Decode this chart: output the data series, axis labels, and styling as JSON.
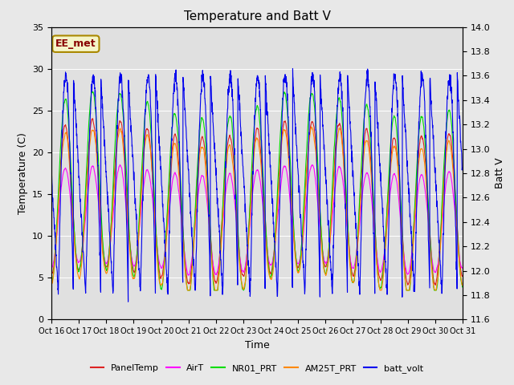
{
  "title": "Temperature and Batt V",
  "xlabel": "Time",
  "ylabel_left": "Temperature (C)",
  "ylabel_right": "Batt V",
  "annotation": "EE_met",
  "ylim_left": [
    0,
    35
  ],
  "ylim_right": [
    11.6,
    14.0
  ],
  "fig_facecolor": "#e8e8e8",
  "ax_facecolor": "#e0e0e0",
  "x_tick_labels": [
    "Oct 16",
    "Oct 17",
    "Oct 18",
    "Oct 19",
    "Oct 20",
    "Oct 21",
    "Oct 22",
    "Oct 23",
    "Oct 24",
    "Oct 25",
    "Oct 26",
    "Oct 27",
    "Oct 28",
    "Oct 29",
    "Oct 30",
    "Oct 31"
  ],
  "series_colors": {
    "PanelTemp": "#dd2222",
    "AirT": "#ff00ff",
    "NR01_PRT": "#00dd00",
    "AM25T_PRT": "#ff8800",
    "batt_volt": "#0000ee"
  },
  "n_days": 15,
  "pts_per_day": 144,
  "seed": 42,
  "left_yticks": [
    0,
    5,
    10,
    15,
    20,
    25,
    30,
    35
  ],
  "right_yticks": [
    11.6,
    11.8,
    12.0,
    12.2,
    12.4,
    12.6,
    12.8,
    13.0,
    13.2,
    13.4,
    13.6,
    13.8,
    14.0
  ],
  "lw": 0.8
}
